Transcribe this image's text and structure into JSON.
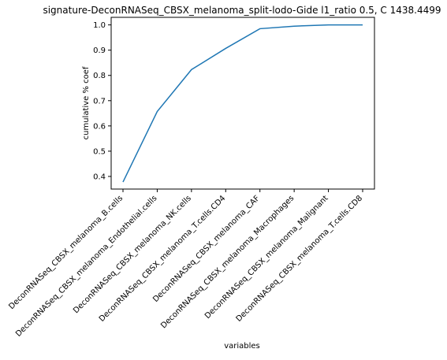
{
  "chart_data": {
    "type": "line",
    "title": "signature-DeconRNASeq_CBSX_melanoma_split-lodo-Gide l1_ratio 0.5, C 1438.4499",
    "xlabel": "variables",
    "ylabel": "cumulative % coef",
    "categories": [
      "DeconRNASeq_CBSX_melanoma_B.cells",
      "DeconRNASeq_CBSX_melanoma_Endothelial.cells",
      "DeconRNASeq_CBSX_melanoma_NK.cells",
      "DeconRNASeq_CBSX_melanoma_T.cells.CD4",
      "DeconRNASeq_CBSX_melanoma_CAF",
      "DeconRNASeq_CBSX_melanoma_Macrophages",
      "DeconRNASeq_CBSX_melanoma_Malignant",
      "DeconRNASeq_CBSX_melanoma_T.cells.CD8"
    ],
    "series": [
      {
        "values": [
          0.378,
          0.657,
          0.823,
          0.907,
          0.985,
          0.995,
          1.0,
          1.0
        ]
      }
    ],
    "ylim": [
      0.35,
      1.03
    ],
    "yticks": [
      0.4,
      0.5,
      0.6,
      0.7,
      0.8,
      0.9,
      1.0
    ],
    "ytick_labels": [
      "0.4",
      "0.5",
      "0.6",
      "0.7",
      "0.8",
      "0.9",
      "1.0"
    ],
    "grid": false,
    "line_color": "#1f77b4"
  }
}
